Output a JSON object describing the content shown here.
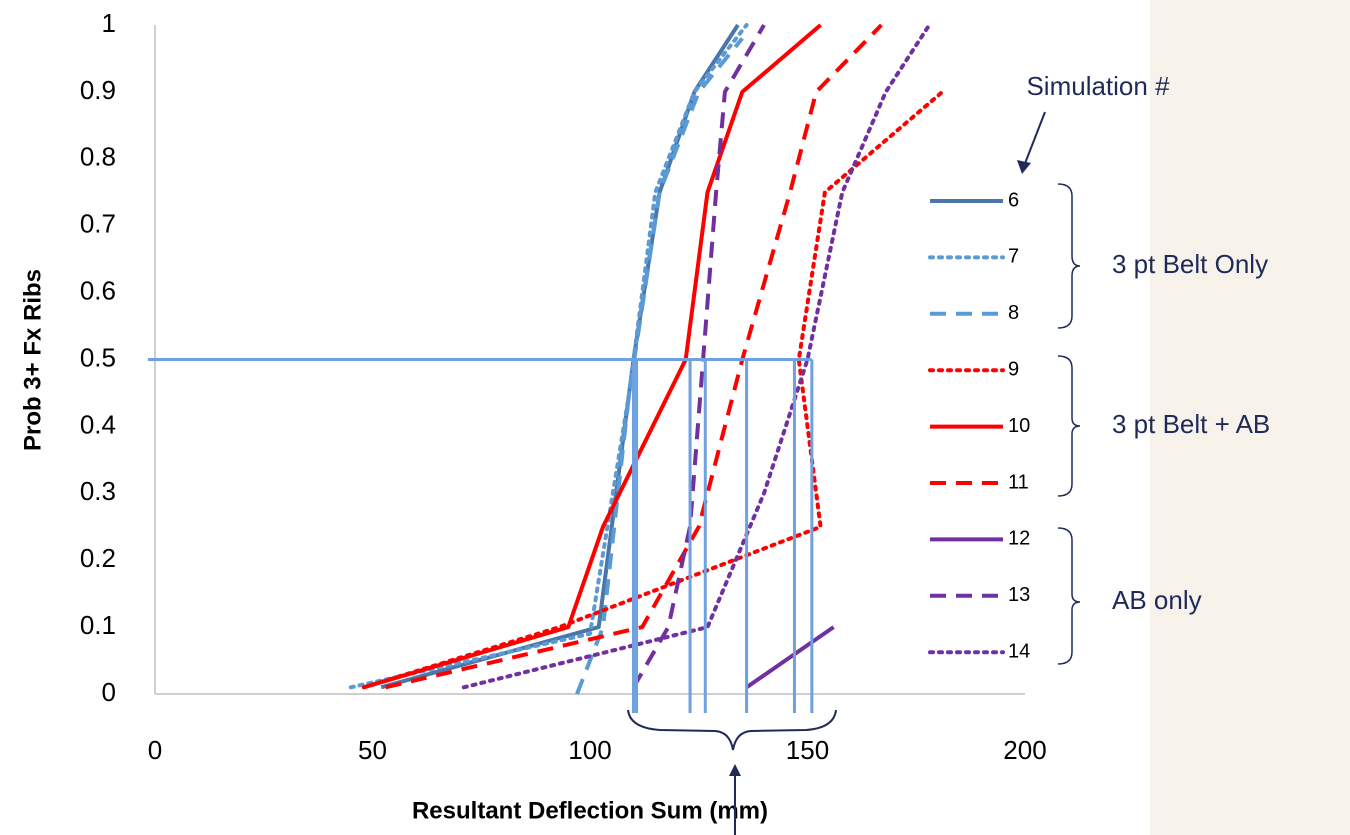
{
  "chart_data": {
    "type": "line",
    "x_label": "Resultant Deflection Sum (mm)",
    "y_label": "Prob 3+ Fx Ribs",
    "xlim": [
      0,
      200
    ],
    "ylim": [
      0,
      1
    ],
    "xticks": [
      0,
      50,
      100,
      150,
      200
    ],
    "yticks": [
      0,
      0.1,
      0.2,
      0.3,
      0.4,
      0.5,
      0.6,
      0.7,
      0.8,
      0.9,
      1
    ],
    "grid": false,
    "legend_title": "Simulation #",
    "groups": [
      "3 pt Belt Only",
      "3 pt Belt + AB",
      "AB only"
    ],
    "reference_lines": {
      "y": 0.5,
      "x": [
        110,
        110.7,
        123,
        126.5,
        136,
        147,
        151
      ],
      "color": "#6fa0e0"
    },
    "series": [
      {
        "name": "6",
        "color": "#4a76a8",
        "dash": "solid",
        "x": [
          52,
          102,
          108,
          110,
          116,
          124,
          134
        ],
        "values": [
          0.01,
          0.1,
          0.4,
          0.5,
          0.75,
          0.9,
          1.0
        ]
      },
      {
        "name": "7",
        "color": "#5b9bd5",
        "dash": "dotted",
        "x": [
          45,
          100,
          109,
          115,
          124,
          136
        ],
        "values": [
          0.01,
          0.09,
          0.45,
          0.75,
          0.9,
          1.0
        ]
      },
      {
        "name": "8",
        "color": "#5b9bd5",
        "dash": "dashed",
        "x": [
          97,
          103,
          109,
          116,
          125,
          135
        ],
        "values": [
          0.0,
          0.1,
          0.45,
          0.75,
          0.9,
          0.98
        ]
      },
      {
        "name": "9",
        "color": "#ff0000",
        "dash": "dotted",
        "x": [
          48,
          93,
          153,
          148,
          154,
          181
        ],
        "values": [
          0.01,
          0.1,
          0.25,
          0.5,
          0.75,
          0.9
        ]
      },
      {
        "name": "10",
        "color": "#ff0000",
        "dash": "solid",
        "x": [
          48,
          95,
          103,
          122,
          127,
          135,
          153
        ],
        "values": [
          0.01,
          0.1,
          0.25,
          0.5,
          0.75,
          0.9,
          1.0
        ]
      },
      {
        "name": "11",
        "color": "#ff0000",
        "dash": "dashed",
        "x": [
          53,
          112,
          125,
          135,
          146,
          152,
          167
        ],
        "values": [
          0.01,
          0.1,
          0.25,
          0.5,
          0.75,
          0.9,
          1.0
        ]
      },
      {
        "name": "12",
        "color": "#7030a0",
        "dash": "solid",
        "x": [
          136,
          156
        ],
        "values": [
          0.01,
          0.1
        ]
      },
      {
        "name": "13",
        "color": "#7030a0",
        "dash": "dashed",
        "x": [
          110,
          118,
          123,
          126,
          129,
          131,
          140
        ],
        "values": [
          0.01,
          0.1,
          0.25,
          0.5,
          0.75,
          0.9,
          1.0
        ]
      },
      {
        "name": "14",
        "color": "#7030a0",
        "dash": "dotted",
        "x": [
          71,
          127,
          140,
          150,
          158,
          168,
          178
        ],
        "values": [
          0.01,
          0.1,
          0.3,
          0.5,
          0.75,
          0.9,
          1.0
        ]
      }
    ]
  }
}
